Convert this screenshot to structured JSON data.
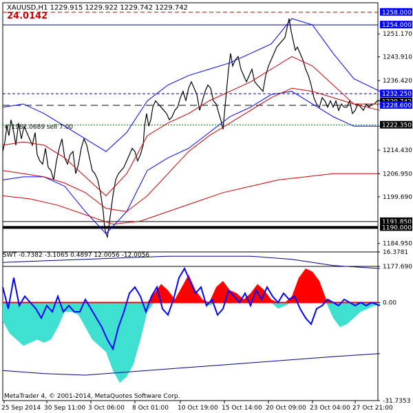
{
  "header": {
    "symbol_line": "XAUUSD,H1  1229.915 1229.922 1229.742 1229.742",
    "indicator_value": "24.0142",
    "trade_label": "#    1982.0689 sell 7.00"
  },
  "footer": {
    "copyright": "MetaTrader 4, © 2001-2014, MetaQuotes Software Corp."
  },
  "colors": {
    "price": "#000000",
    "bands": "#0000ff",
    "ma": "#cc0000",
    "swt_pos": "#ff0000",
    "swt_neg": "#40e0d0",
    "swt_line": "#0000ff",
    "label_blue_bg": "#0000ff",
    "label_gray_bg": "#000000"
  },
  "chart_data": [
    {
      "type": "line",
      "title": "XAUUSD,H1",
      "ylim": [
        1177.69,
        1261.0
      ],
      "y_ticks": [
        "1251.170",
        "1243.910",
        "1236.420",
        "1214.430",
        "1206.950",
        "1199.690",
        "1184.950",
        "1177.690"
      ],
      "x_ticks": [
        "25 Sep 2014",
        "30 Sep 11:00",
        "3 Oct 06:00",
        "8 Oct 01:00",
        "10 Oct 19:00",
        "15 Oct 14:00",
        "20 Oct 09:00",
        "23 Oct 04:00",
        "27 Oct 21:00"
      ],
      "price_labels": [
        {
          "text": "1258.000",
          "value": 1258.0,
          "style": "blue"
        },
        {
          "text": "1254.000",
          "value": 1254.0,
          "style": "blue"
        },
        {
          "text": "1232.250",
          "value": 1232.25,
          "style": "blue"
        },
        {
          "text": "1229.742",
          "value": 1229.742,
          "style": "gray"
        },
        {
          "text": "1228.600",
          "value": 1228.6,
          "style": "blue"
        },
        {
          "text": "1222.350",
          "value": 1222.35,
          "style": "gray"
        },
        {
          "text": "1191.850",
          "value": 1191.85,
          "style": "gray"
        },
        {
          "text": "1190.000",
          "value": 1190.0,
          "style": "gray"
        }
      ],
      "levels": [
        {
          "value": 1258.0,
          "style": "red-dash"
        },
        {
          "value": 1254.0,
          "style": "blue-solid"
        },
        {
          "value": 1232.25,
          "style": "blue-dash"
        },
        {
          "value": 1228.6,
          "style": "black-dash"
        },
        {
          "value": 1222.35,
          "style": "green-dot"
        },
        {
          "value": 1191.85,
          "style": "black-solid"
        },
        {
          "value": 1190.0,
          "style": "black-thick"
        }
      ],
      "series": [
        {
          "name": "price",
          "x": [
            0,
            3,
            6,
            9,
            12,
            16,
            19,
            23,
            27,
            31,
            35,
            39,
            43,
            47,
            50,
            54,
            58,
            62,
            66,
            70,
            74,
            78,
            82,
            86,
            90,
            94,
            98,
            102,
            106,
            110,
            114,
            118,
            122,
            126,
            130,
            134,
            138,
            142,
            146,
            148,
            150,
            152,
            154,
            157,
            160,
            164,
            168,
            172,
            176,
            180,
            184,
            188,
            192,
            196,
            200,
            204,
            206,
            209,
            212,
            215,
            218,
            222,
            226,
            230,
            234,
            238,
            242,
            246,
            250,
            254,
            258,
            262,
            266,
            270,
            274,
            278,
            282,
            286,
            290,
            294,
            298,
            302,
            306,
            310,
            314,
            318,
            320,
            322,
            325,
            328,
            331,
            334,
            338,
            342,
            346,
            350,
            354,
            358,
            362,
            366,
            370,
            374,
            378,
            382,
            386,
            390,
            394,
            398,
            402,
            406,
            410,
            413,
            416,
            419,
            422,
            425,
            428,
            432,
            436,
            440,
            444,
            448,
            452,
            456,
            460,
            464,
            468,
            472,
            476,
            480,
            484,
            488,
            492,
            496,
            500,
            504,
            508,
            512,
            516,
            520,
            524,
            528,
            532,
            536,
            540,
            544,
            548
          ],
          "y": [
            1214,
            1217,
            1222,
            1219,
            1224,
            1220,
            1216,
            1223,
            1218,
            1222,
            1220,
            1218,
            1216,
            1220,
            1213,
            1211,
            1210,
            1215,
            1209,
            1208,
            1205,
            1211,
            1215,
            1218,
            1212,
            1210,
            1213,
            1214,
            1207,
            1210,
            1215,
            1218,
            1216,
            1212,
            1208,
            1207,
            1205,
            1201,
            1195,
            1190,
            1188,
            1187,
            1190,
            1195,
            1200,
            1205,
            1207,
            1208,
            1209,
            1211,
            1213,
            1215,
            1214,
            1211,
            1213,
            1216,
            1222,
            1226,
            1222,
            1224,
            1228,
            1230,
            1229,
            1228,
            1227,
            1226,
            1224,
            1225,
            1227,
            1228,
            1231,
            1233,
            1230,
            1234,
            1236,
            1234,
            1232,
            1227,
            1230,
            1233,
            1235,
            1234,
            1230,
            1229,
            1226,
            1223,
            1221,
            1226,
            1233,
            1240,
            1245,
            1241,
            1243,
            1244,
            1240,
            1238,
            1236,
            1238,
            1240,
            1236,
            1235,
            1234,
            1233,
            1238,
            1241,
            1243,
            1245,
            1247,
            1248,
            1249,
            1250,
            1253,
            1256,
            1252,
            1249,
            1246,
            1247,
            1245,
            1243,
            1240,
            1238,
            1235,
            1231,
            1229,
            1228,
            1231,
            1230,
            1228,
            1230,
            1228,
            1230,
            1227,
            1229,
            1228,
            1228,
            1230,
            1226,
            1227,
            1229,
            1228,
            1227,
            1229,
            1228,
            1229,
            1229,
            1230,
            1230
          ]
        },
        {
          "name": "upper band",
          "x": [
            0,
            30,
            60,
            90,
            120,
            150,
            180,
            210,
            240,
            270,
            300,
            330,
            360,
            390,
            420,
            450,
            480,
            510,
            548
          ],
          "y": [
            1228,
            1229,
            1226,
            1222,
            1218,
            1214,
            1220,
            1230,
            1235,
            1238,
            1240,
            1242,
            1245,
            1248,
            1256,
            1254,
            1245,
            1237,
            1233
          ]
        },
        {
          "name": "lower band",
          "x": [
            0,
            30,
            60,
            90,
            120,
            150,
            180,
            210,
            240,
            270,
            300,
            330,
            360,
            390,
            420,
            450,
            480,
            510,
            548
          ],
          "y": [
            1205,
            1206,
            1206,
            1203,
            1195,
            1188,
            1195,
            1208,
            1212,
            1215,
            1220,
            1225,
            1228,
            1232,
            1233,
            1229,
            1225,
            1222,
            1222
          ]
        },
        {
          "name": "mid band",
          "x": [
            0,
            30,
            60,
            90,
            120,
            150,
            180,
            210,
            240,
            270,
            300,
            330,
            360,
            390,
            420,
            450,
            480,
            510,
            548
          ],
          "y": [
            1216,
            1217,
            1216,
            1212,
            1206,
            1200,
            1207,
            1219,
            1223,
            1226,
            1230,
            1233,
            1236,
            1240,
            1244,
            1241,
            1235,
            1229,
            1227
          ]
        },
        {
          "name": "ma 1",
          "x": [
            0,
            30,
            60,
            90,
            120,
            150,
            180,
            210,
            240,
            270,
            300,
            330,
            360,
            390,
            420,
            450,
            480,
            510,
            548
          ],
          "y": [
            1208,
            1207,
            1206,
            1204,
            1201,
            1196,
            1195,
            1200,
            1207,
            1214,
            1219,
            1223,
            1227,
            1231,
            1234,
            1233,
            1231,
            1229,
            1229
          ]
        },
        {
          "name": "ma 2",
          "x": [
            0,
            40,
            80,
            120,
            160,
            200,
            240,
            280,
            320,
            360,
            400,
            440,
            480,
            520,
            548
          ],
          "y": [
            1200,
            1199,
            1197,
            1194,
            1191,
            1192,
            1195,
            1198,
            1201,
            1203,
            1205,
            1206,
            1207,
            1207,
            1207
          ]
        }
      ]
    },
    {
      "type": "area",
      "title": "SWT",
      "header": "SWT -0.7382 -3.1065 0.4897 12.0056 -12.0056",
      "ylim": [
        -31.7353,
        16.3781
      ],
      "y_ticks": [
        "16.3781",
        "0.00",
        "-31.7353"
      ],
      "series": [
        {
          "name": "swt area",
          "x": [
            0,
            10,
            20,
            30,
            40,
            50,
            60,
            70,
            80,
            90,
            100,
            110,
            120,
            130,
            140,
            150,
            160,
            170,
            180,
            190,
            200,
            210,
            220,
            230,
            240,
            250,
            260,
            270,
            280,
            290,
            300,
            310,
            320,
            330,
            340,
            350,
            360,
            370,
            380,
            390,
            400,
            410,
            420,
            430,
            440,
            450,
            460,
            470,
            480,
            490,
            500,
            510,
            520,
            530,
            540,
            548
          ],
          "y": [
            -6,
            -10,
            -12,
            -14,
            -13,
            -12,
            -13,
            -12,
            -8,
            -3,
            -3,
            -4,
            -8,
            -12,
            -14,
            -16,
            -22,
            -26,
            -24,
            -20,
            -12,
            -3,
            3,
            6,
            4,
            1,
            5,
            9,
            4,
            1,
            -1,
            5,
            7,
            4,
            3,
            1,
            3,
            6,
            4,
            1,
            -2,
            -1,
            2,
            8,
            11,
            10,
            7,
            1,
            -5,
            -8,
            -7,
            -5,
            -3,
            -2,
            -1,
            -1
          ]
        },
        {
          "name": "swt line",
          "x": [
            0,
            8,
            16,
            24,
            32,
            40,
            48,
            56,
            64,
            72,
            80,
            88,
            96,
            104,
            112,
            120,
            128,
            136,
            144,
            152,
            160,
            168,
            176,
            184,
            192,
            200,
            208,
            216,
            224,
            232,
            240,
            248,
            256,
            264,
            272,
            280,
            288,
            296,
            304,
            312,
            320,
            328,
            336,
            344,
            352,
            360,
            368,
            376,
            384,
            392,
            400,
            408,
            416,
            424,
            432,
            440,
            448,
            456,
            464,
            472,
            480,
            488,
            496,
            504,
            512,
            520,
            528,
            536,
            548
          ],
          "y": [
            5,
            -2,
            8,
            -1,
            2,
            0,
            -2,
            -5,
            -1,
            -3,
            2,
            -3,
            -1,
            -3,
            -3,
            1,
            -2,
            -5,
            -8,
            -12,
            -15,
            -8,
            -3,
            3,
            5,
            2,
            -3,
            2,
            5,
            -2,
            -4,
            1,
            8,
            11,
            7,
            3,
            5,
            -1,
            1,
            -4,
            -2,
            4,
            2,
            0,
            3,
            -1,
            4,
            1,
            5,
            2,
            0,
            3,
            1,
            2,
            -2,
            -5,
            -7,
            -2,
            -1,
            1,
            0,
            -1,
            1,
            0,
            -1,
            0,
            -1,
            0,
            -1
          ]
        },
        {
          "name": "upper envelope",
          "x": [
            0,
            60,
            120,
            180,
            240,
            300,
            360,
            420,
            480,
            548
          ],
          "y": [
            13,
            13.5,
            14,
            14.5,
            15,
            15,
            15,
            14,
            12,
            11
          ]
        },
        {
          "name": "lower envelope",
          "x": [
            0,
            60,
            120,
            180,
            240,
            300,
            360,
            420,
            480,
            548
          ],
          "y": [
            -22,
            -23,
            -23.5,
            -22.5,
            -21.5,
            -20.5,
            -19.5,
            -18.5,
            -17.5,
            -16.5
          ]
        }
      ]
    }
  ]
}
